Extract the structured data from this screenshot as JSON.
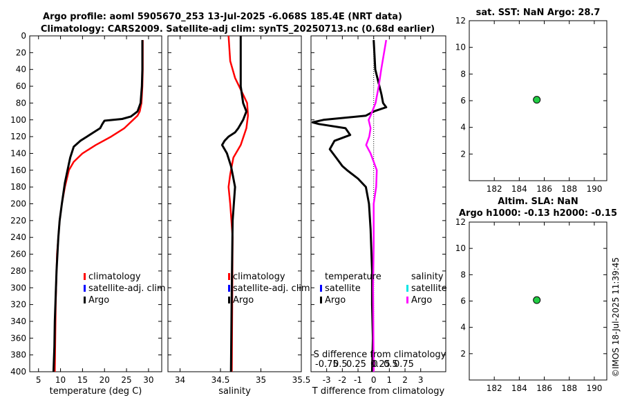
{
  "title": {
    "line1": "Argo profile: aoml 5905670_253 13-Jul-2025 -6.068S 185.4E (NRT data)",
    "line2": "Climatology: CARS2009. Satellite-adj clim: synTS_20250713.nc (0.68d earlier)"
  },
  "watermark": "©IMOS 18-Jul-2025 11:39:45",
  "colors": {
    "climatology": "#ff0000",
    "satellite": "#0000ff",
    "argo": "#000000",
    "sal_satellite": "#00e5e5",
    "sal_argo": "#ff00ff",
    "marker": "#22cc44"
  },
  "chart_data": [
    {
      "id": "temperature",
      "type": "line",
      "xlabel": "temperature (deg C)",
      "xlim": [
        3,
        33
      ],
      "xticks": [
        "5",
        "10",
        "15",
        "20",
        "25",
        "30"
      ],
      "ylim": [
        0,
        400
      ],
      "yticks": [
        "0",
        "20",
        "40",
        "60",
        "80",
        "100",
        "120",
        "140",
        "160",
        "180",
        "200",
        "220",
        "240",
        "260",
        "280",
        "300",
        "320",
        "340",
        "360",
        "380",
        "400"
      ],
      "legend": [
        "climatology",
        "satellite-adj. clim",
        "Argo"
      ],
      "series": [
        {
          "name": "climatology",
          "x": [
            28.7,
            28.7,
            28.6,
            28.4,
            28.0,
            27.5,
            26.5,
            24.5,
            21.5,
            18.0,
            15.0,
            13.0,
            11.9,
            11.0,
            10.3,
            9.8,
            9.2,
            8.9,
            8.7
          ],
          "y": [
            5,
            40,
            60,
            80,
            90,
            95,
            100,
            110,
            120,
            130,
            140,
            150,
            160,
            180,
            200,
            220,
            260,
            320,
            400
          ]
        },
        {
          "name": "Argo",
          "x": [
            28.6,
            28.6,
            28.5,
            28.2,
            27.5,
            26.0,
            24.0,
            22.0,
            20.0,
            19.5,
            19.0,
            17.5,
            16.0,
            14.5,
            13.0,
            12.2,
            11.8,
            11.0,
            10.3,
            9.8,
            9.5,
            9.1,
            8.7,
            8.6,
            8.4
          ],
          "y": [
            5,
            40,
            60,
            80,
            90,
            96,
            99,
            100,
            101,
            105,
            110,
            115,
            120,
            125,
            132,
            145,
            155,
            175,
            200,
            220,
            240,
            280,
            340,
            370,
            400
          ]
        }
      ]
    },
    {
      "id": "salinity",
      "type": "line",
      "xlabel": "salinity",
      "xlim": [
        33.85,
        35.5
      ],
      "xticks": [
        "34",
        "34.5",
        "35",
        "35.5"
      ],
      "ylim": [
        0,
        400
      ],
      "legend": [
        "climatology",
        "satellite-adj. clim",
        "Argo"
      ],
      "series": [
        {
          "name": "climatology",
          "x": [
            34.6,
            34.62,
            34.68,
            34.78,
            34.83,
            34.84,
            34.82,
            34.75,
            34.66,
            34.62,
            34.6,
            34.62,
            34.65,
            34.64
          ],
          "y": [
            0,
            30,
            50,
            70,
            80,
            95,
            110,
            130,
            145,
            165,
            180,
            200,
            240,
            400
          ]
        },
        {
          "name": "Argo",
          "x": [
            34.75,
            34.75,
            34.78,
            34.82,
            34.78,
            34.72,
            34.68,
            34.6,
            34.55,
            34.52,
            34.58,
            34.63,
            34.65,
            34.68,
            34.65,
            34.64,
            34.63
          ],
          "y": [
            0,
            60,
            80,
            90,
            100,
            110,
            115,
            120,
            125,
            130,
            140,
            155,
            165,
            180,
            220,
            300,
            400
          ]
        }
      ]
    },
    {
      "id": "difference",
      "type": "line",
      "xlabel": "T difference from climatology",
      "xlabel_top": "S difference from climatology",
      "xlim": [
        -4,
        4.6
      ],
      "xticks": [
        "-3",
        "-2",
        "-1",
        "0",
        "1",
        "2",
        "3"
      ],
      "top_ticks": [
        "-0.75",
        "0.5",
        "0.25",
        "0",
        "0.25",
        "0.5",
        "0.75"
      ],
      "s_scale": 4,
      "ylim": [
        0,
        400
      ],
      "legend_left_title": "temperature",
      "legend_right_title": "salinity",
      "legend_left": [
        "satellite",
        "Argo"
      ],
      "legend_right": [
        "satellite",
        "Argo"
      ],
      "series": [
        {
          "name": "T Argo",
          "x": [
            0.0,
            0.1,
            0.5,
            0.6,
            0.8,
            0.0,
            -0.5,
            -3.2,
            -3.9,
            -3.5,
            -1.8,
            -1.5,
            -2.5,
            -2.8,
            -2.4,
            -2.0,
            -1.7,
            -1.0,
            -0.5,
            -0.3,
            -0.2,
            -0.1,
            -0.1,
            -0.05,
            -0.1
          ],
          "y": [
            5,
            40,
            70,
            80,
            85,
            90,
            95,
            100,
            103,
            105,
            110,
            118,
            125,
            135,
            145,
            155,
            160,
            170,
            180,
            200,
            230,
            280,
            320,
            360,
            400
          ]
        },
        {
          "name": "S Argo",
          "x": [
            0.2,
            0.12,
            0.08,
            0.03,
            -0.05,
            -0.08,
            -0.05,
            -0.07,
            -0.12,
            -0.05,
            0.0,
            0.05,
            0.04,
            0.0,
            0.0,
            -0.01,
            0.0
          ],
          "y": [
            5,
            40,
            60,
            80,
            95,
            100,
            110,
            120,
            130,
            140,
            150,
            160,
            180,
            200,
            250,
            300,
            400
          ]
        }
      ]
    },
    {
      "id": "sst",
      "type": "scatter",
      "title": "sat. SST: NaN Argo: 28.7",
      "xlim": [
        180,
        191
      ],
      "xticks": [
        "182",
        "184",
        "186",
        "188",
        "190"
      ],
      "ylim": [
        0,
        12
      ],
      "yticks": [
        "2",
        "4",
        "6",
        "8",
        "10",
        "12"
      ],
      "points": [
        {
          "x": 185.4,
          "y": 6.07
        }
      ]
    },
    {
      "id": "sla",
      "type": "scatter",
      "title_line1": "Altim. SLA: NaN",
      "title_line2": "Argo h1000: -0.13 h2000: -0.15",
      "xlim": [
        180,
        191
      ],
      "xticks": [
        "182",
        "184",
        "186",
        "188",
        "190"
      ],
      "ylim": [
        0,
        12
      ],
      "yticks": [
        "2",
        "4",
        "6",
        "8",
        "10",
        "12"
      ],
      "points": [
        {
          "x": 185.4,
          "y": 6.07
        }
      ]
    }
  ]
}
